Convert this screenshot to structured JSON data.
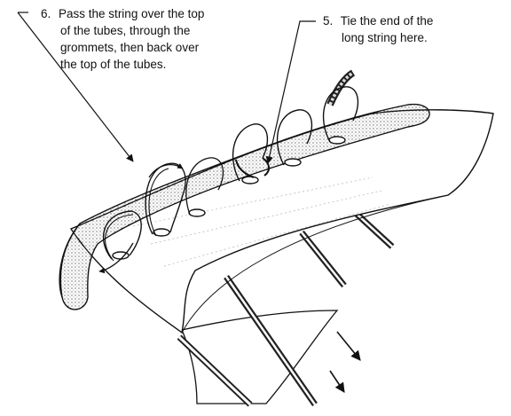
{
  "diagram": {
    "callouts": [
      {
        "number": "6.",
        "lines": [
          "Pass the string over the top",
          "of the tubes, through the",
          "grommets, then back over",
          "the top of the tubes."
        ]
      },
      {
        "number": "5.",
        "lines": [
          "Tie the end of the",
          "long string here."
        ]
      }
    ],
    "colors": {
      "ink": "#111111",
      "stipple": "#555555",
      "paper": "#ffffff"
    }
  }
}
